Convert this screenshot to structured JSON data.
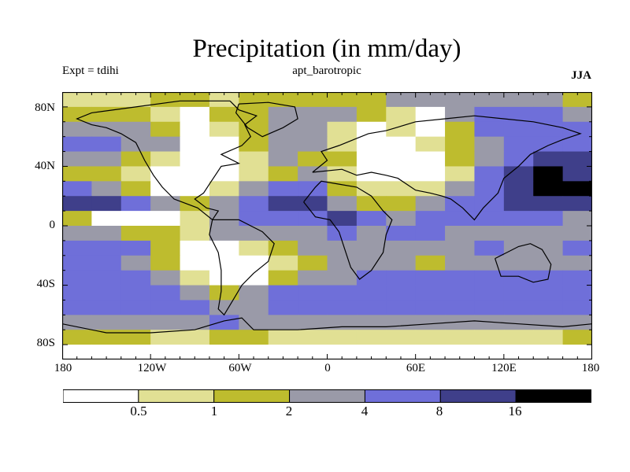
{
  "title": "Precipitation (in mm/day)",
  "left_string": "Expt = tdihi",
  "center_string": "apt_barotropic",
  "right_string": "JJA",
  "lat_labels": [
    "80N",
    "40N",
    "0",
    "40S",
    "80S"
  ],
  "lon_labels": [
    "180",
    "120W",
    "60W",
    "0",
    "60E",
    "120E",
    "180"
  ],
  "colorbar": {
    "labels": [
      "0.5",
      "1",
      "2",
      "4",
      "8",
      "16"
    ],
    "colors": [
      "#ffffff",
      "#e1e094",
      "#bebc2e",
      "#9a9aa8",
      "#6f6fd9",
      "#3f3f8a",
      "#000000"
    ]
  },
  "chart_data": {
    "type": "heatmap",
    "title": "Precipitation (in mm/day)",
    "units": "mm/day",
    "season": "JJA",
    "experiment": "tdihi",
    "case": "apt_barotropic",
    "lon_range": [
      -180,
      180
    ],
    "lat_range": [
      -90,
      90
    ],
    "contour_levels": [
      0.5,
      1,
      2,
      4,
      8,
      16
    ],
    "grid": {
      "lats": [
        85,
        75,
        65,
        55,
        45,
        35,
        25,
        15,
        5,
        -5,
        -15,
        -25,
        -35,
        -45,
        -55,
        -65,
        -75,
        -85
      ],
      "lons": [
        -170,
        -150,
        -130,
        -110,
        -90,
        -70,
        -50,
        -30,
        -10,
        10,
        30,
        50,
        70,
        90,
        110,
        130,
        150,
        170
      ],
      "values": [
        [
          0.8,
          0.8,
          0.8,
          1.2,
          1.5,
          0.8,
          1.2,
          1.5,
          1.5,
          1.2,
          1.5,
          2.5,
          2.5,
          2.5,
          3,
          3,
          2.5,
          1.5
        ],
        [
          1.5,
          1.5,
          1.5,
          0.8,
          0.3,
          1.5,
          1.5,
          2.5,
          3,
          2.5,
          1.5,
          0.8,
          0.3,
          3,
          5,
          5,
          5,
          3
        ],
        [
          3,
          3,
          3,
          1.5,
          0.3,
          0.8,
          1.5,
          3,
          3,
          0.8,
          0.3,
          0.8,
          0.3,
          1.5,
          5,
          5,
          5,
          5
        ],
        [
          5,
          5,
          3,
          2.5,
          0.3,
          0.3,
          1.5,
          3,
          2.5,
          0.8,
          0.3,
          0.3,
          0.8,
          1.5,
          3,
          5,
          5,
          5
        ],
        [
          3,
          3,
          1.5,
          0.8,
          0.3,
          0.3,
          0.8,
          3,
          1.5,
          1.5,
          0.3,
          0.3,
          0.3,
          1.5,
          3,
          5,
          10,
          10
        ],
        [
          1.5,
          1.5,
          0.8,
          0.3,
          0.3,
          0.3,
          0.8,
          1.5,
          3,
          0.8,
          0.3,
          0.3,
          0.3,
          0.8,
          5,
          10,
          20,
          10
        ],
        [
          5,
          3,
          1.5,
          0.3,
          0.3,
          0.8,
          3,
          5,
          5,
          1.5,
          0.8,
          0.8,
          0.8,
          3,
          5,
          10,
          20,
          20
        ],
        [
          10,
          10,
          5,
          3,
          1.5,
          3,
          5,
          10,
          10,
          3,
          1.5,
          1.5,
          3,
          5,
          5,
          10,
          10,
          10
        ],
        [
          1.5,
          0.3,
          0.3,
          0.3,
          0.8,
          3,
          5,
          5,
          5,
          10,
          5,
          3,
          5,
          5,
          5,
          5,
          5,
          3
        ],
        [
          3,
          3,
          1.5,
          1.5,
          0.8,
          3,
          3,
          3,
          3,
          5,
          3,
          5,
          5,
          3,
          3,
          3,
          3,
          3
        ],
        [
          5,
          5,
          5,
          1.5,
          0.3,
          0.3,
          0.8,
          1.5,
          3,
          3,
          3,
          3,
          3,
          3,
          5,
          3,
          3,
          5
        ],
        [
          5,
          5,
          3,
          1.5,
          0.3,
          0.3,
          0.3,
          0.8,
          1.5,
          3,
          3,
          3,
          1.5,
          3,
          3,
          3,
          3,
          3
        ],
        [
          5,
          5,
          5,
          3,
          0.8,
          0.3,
          0.3,
          1.5,
          3,
          3,
          5,
          5,
          5,
          5,
          5,
          5,
          5,
          5
        ],
        [
          5,
          5,
          5,
          5,
          3,
          1.5,
          3,
          5,
          5,
          5,
          5,
          5,
          5,
          5,
          5,
          5,
          5,
          5
        ],
        [
          5,
          5,
          5,
          5,
          5,
          3,
          3,
          5,
          5,
          5,
          5,
          5,
          5,
          5,
          5,
          5,
          5,
          5
        ],
        [
          3,
          3,
          3,
          3,
          3,
          5,
          3,
          3,
          3,
          3,
          3,
          3,
          3,
          3,
          3,
          3,
          3,
          3
        ],
        [
          1.5,
          1.5,
          1.5,
          0.8,
          0.8,
          1.5,
          1.5,
          0.8,
          0.8,
          0.8,
          0.8,
          0.8,
          0.8,
          0.8,
          0.8,
          0.8,
          0.8,
          1.5
        ],
        [
          0.3,
          0.3,
          0.3,
          0.3,
          0.3,
          0.3,
          0.3,
          0.3,
          0.3,
          0.3,
          0.3,
          0.3,
          0.3,
          0.3,
          0.3,
          0.3,
          0.3,
          0.3
        ]
      ]
    },
    "coastlines": [
      {
        "name": "north-america",
        "points": [
          [
            -66,
            84
          ],
          [
            -60,
            78
          ],
          [
            -48,
            74
          ],
          [
            -56,
            68
          ],
          [
            -52,
            60
          ],
          [
            -58,
            54
          ],
          [
            -72,
            48
          ],
          [
            -60,
            42
          ],
          [
            -72,
            40
          ],
          [
            -76,
            34
          ],
          [
            -80,
            28
          ],
          [
            -84,
            22
          ],
          [
            -90,
            18
          ],
          [
            -82,
            12
          ],
          [
            -74,
            10
          ],
          [
            -78,
            4
          ],
          [
            -88,
            12
          ],
          [
            -104,
            18
          ],
          [
            -112,
            26
          ],
          [
            -118,
            34
          ],
          [
            -124,
            44
          ],
          [
            -130,
            56
          ],
          [
            -140,
            62
          ],
          [
            -150,
            66
          ],
          [
            -160,
            68
          ],
          [
            -170,
            72
          ],
          [
            -160,
            76
          ],
          [
            -130,
            80
          ],
          [
            -100,
            84
          ],
          [
            -66,
            84
          ]
        ]
      },
      {
        "name": "south-america",
        "points": [
          [
            -78,
            4
          ],
          [
            -60,
            4
          ],
          [
            -44,
            -4
          ],
          [
            -36,
            -12
          ],
          [
            -40,
            -24
          ],
          [
            -50,
            -32
          ],
          [
            -58,
            -40
          ],
          [
            -64,
            -50
          ],
          [
            -70,
            -60
          ],
          [
            -74,
            -56
          ],
          [
            -72,
            -44
          ],
          [
            -72,
            -30
          ],
          [
            -74,
            -18
          ],
          [
            -80,
            -6
          ],
          [
            -78,
            4
          ]
        ]
      },
      {
        "name": "africa",
        "points": [
          [
            -16,
            16
          ],
          [
            -8,
            26
          ],
          [
            -4,
            30
          ],
          [
            8,
            28
          ],
          [
            20,
            26
          ],
          [
            30,
            20
          ],
          [
            38,
            10
          ],
          [
            44,
            4
          ],
          [
            40,
            -6
          ],
          [
            38,
            -18
          ],
          [
            30,
            -30
          ],
          [
            22,
            -36
          ],
          [
            16,
            -28
          ],
          [
            12,
            -16
          ],
          [
            8,
            -4
          ],
          [
            2,
            4
          ],
          [
            -8,
            6
          ],
          [
            -16,
            16
          ]
        ]
      },
      {
        "name": "eurasia",
        "points": [
          [
            -10,
            36
          ],
          [
            0,
            44
          ],
          [
            -4,
            50
          ],
          [
            8,
            54
          ],
          [
            18,
            58
          ],
          [
            28,
            62
          ],
          [
            40,
            64
          ],
          [
            60,
            70
          ],
          [
            80,
            72
          ],
          [
            100,
            74
          ],
          [
            120,
            72
          ],
          [
            140,
            70
          ],
          [
            160,
            66
          ],
          [
            172,
            62
          ],
          [
            160,
            58
          ],
          [
            150,
            54
          ],
          [
            138,
            48
          ],
          [
            130,
            40
          ],
          [
            120,
            32
          ],
          [
            116,
            22
          ],
          [
            106,
            12
          ],
          [
            100,
            4
          ],
          [
            92,
            12
          ],
          [
            84,
            18
          ],
          [
            78,
            20
          ],
          [
            70,
            22
          ],
          [
            60,
            24
          ],
          [
            54,
            28
          ],
          [
            48,
            32
          ],
          [
            40,
            34
          ],
          [
            30,
            36
          ],
          [
            20,
            34
          ],
          [
            10,
            38
          ],
          [
            -10,
            36
          ]
        ]
      },
      {
        "name": "australia",
        "points": [
          [
            114,
            -22
          ],
          [
            122,
            -18
          ],
          [
            130,
            -14
          ],
          [
            138,
            -12
          ],
          [
            146,
            -16
          ],
          [
            152,
            -26
          ],
          [
            150,
            -36
          ],
          [
            140,
            -38
          ],
          [
            130,
            -34
          ],
          [
            118,
            -34
          ],
          [
            114,
            -22
          ]
        ]
      },
      {
        "name": "antarctica",
        "points": [
          [
            -180,
            -66
          ],
          [
            -150,
            -72
          ],
          [
            -120,
            -72
          ],
          [
            -90,
            -70
          ],
          [
            -70,
            -64
          ],
          [
            -58,
            -62
          ],
          [
            -50,
            -70
          ],
          [
            -20,
            -70
          ],
          [
            10,
            -68
          ],
          [
            40,
            -68
          ],
          [
            70,
            -66
          ],
          [
            100,
            -64
          ],
          [
            130,
            -66
          ],
          [
            160,
            -68
          ],
          [
            180,
            -66
          ]
        ]
      },
      {
        "name": "greenland",
        "points": [
          [
            -60,
            82
          ],
          [
            -40,
            83
          ],
          [
            -22,
            80
          ],
          [
            -20,
            72
          ],
          [
            -30,
            66
          ],
          [
            -44,
            60
          ],
          [
            -54,
            66
          ],
          [
            -62,
            76
          ],
          [
            -60,
            82
          ]
        ]
      }
    ]
  }
}
